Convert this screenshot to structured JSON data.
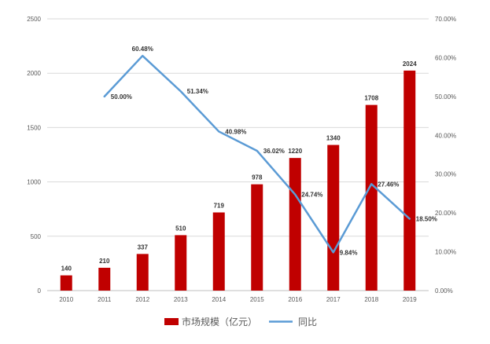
{
  "chart_data": {
    "type": "bar+line",
    "categories": [
      "2010",
      "2011",
      "2012",
      "2013",
      "2014",
      "2015",
      "2016",
      "2017",
      "2018",
      "2019"
    ],
    "series": [
      {
        "name": "市场规模（亿元）",
        "type": "bar",
        "axis": "left",
        "color": "#C00000",
        "values": [
          140,
          210,
          337,
          510,
          719,
          978,
          1220,
          1340,
          1708,
          2024
        ],
        "labels": [
          "140",
          "210",
          "337",
          "510",
          "719",
          "978",
          "1220",
          "1340",
          "1708",
          "2024"
        ]
      },
      {
        "name": "同比",
        "type": "line",
        "axis": "right",
        "color": "#5B9BD5",
        "values": [
          null,
          50.0,
          60.48,
          51.34,
          40.98,
          36.02,
          24.74,
          9.84,
          27.46,
          18.5
        ],
        "labels": [
          null,
          "50.00%",
          "60.48%",
          "51.34%",
          "40.98%",
          "36.02%",
          "24.74%",
          "9.84%",
          "27.46%",
          "18.50%"
        ]
      }
    ],
    "y_left": {
      "range": [
        0,
        2500
      ],
      "ticks": [
        0,
        500,
        1000,
        1500,
        2000,
        2500
      ],
      "tick_labels": [
        "0",
        "500",
        "1000",
        "1500",
        "2000",
        "2500"
      ]
    },
    "y_right": {
      "range": [
        0,
        70
      ],
      "ticks": [
        0,
        10,
        20,
        30,
        40,
        50,
        60,
        70
      ],
      "tick_labels": [
        "0.00%",
        "10.00%",
        "20.00%",
        "30.00%",
        "40.00%",
        "50.00%",
        "60.00%",
        "70.00%"
      ]
    },
    "grid": true,
    "legend": "bottom-center",
    "title": "",
    "xlabel": "",
    "ylabel": ""
  }
}
